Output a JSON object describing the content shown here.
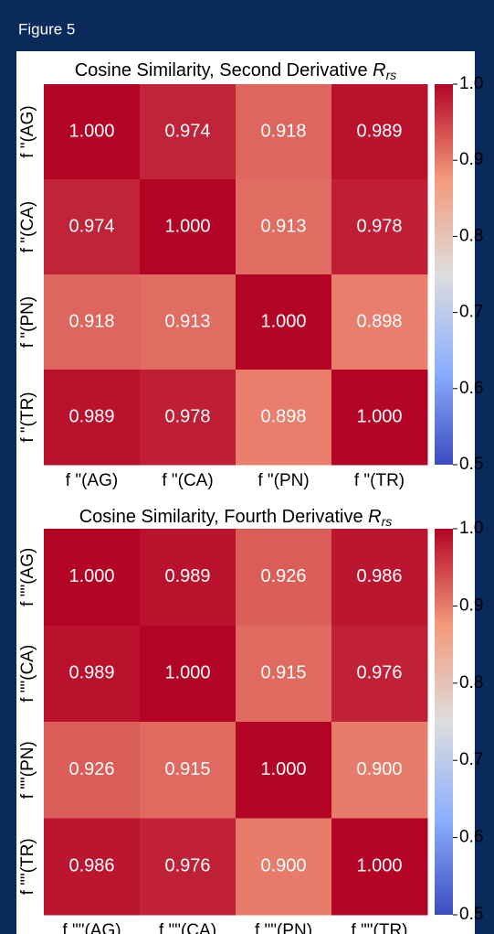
{
  "header": {
    "title": "Figure 5"
  },
  "chart_data": [
    {
      "type": "heatmap",
      "title": "Cosine Similarity, Second Derivative",
      "title_symbol": "R",
      "title_symbol_subscript": "rs",
      "x_categories": [
        "f \"(AG)",
        "f \"(CA)",
        "f \"(PN)",
        "f \"(TR)"
      ],
      "y_categories": [
        "f \"(AG)",
        "f \"(CA)",
        "f \"(PN)",
        "f \"(TR)"
      ],
      "z": [
        [
          1.0,
          0.974,
          0.918,
          0.989
        ],
        [
          0.974,
          1.0,
          0.913,
          0.978
        ],
        [
          0.918,
          0.913,
          1.0,
          0.898
        ],
        [
          0.989,
          0.978,
          0.898,
          1.0
        ]
      ],
      "value_labels": [
        [
          "1.000",
          "0.974",
          "0.918",
          "0.989"
        ],
        [
          "0.974",
          "1.000",
          "0.913",
          "0.978"
        ],
        [
          "0.918",
          "0.913",
          "1.000",
          "0.898"
        ],
        [
          "0.989",
          "0.978",
          "0.898",
          "1.000"
        ]
      ],
      "colormap": "coolwarm",
      "zlim": [
        0.5,
        1.0
      ],
      "zticks": [
        0.5,
        0.6,
        0.7,
        0.8,
        0.9,
        {
          "value": 1.0,
          "label": "1.0"
        }
      ]
    },
    {
      "type": "heatmap",
      "title": "Cosine Similarity, Fourth Derivative",
      "title_symbol": "R",
      "title_symbol_subscript": "rs",
      "x_categories": [
        "f \"\"(AG)",
        "f \"\"(CA)",
        "f \"\"(PN)",
        "f \"\"(TR)"
      ],
      "y_categories": [
        "f \"\"(AG)",
        "f \"\"(CA)",
        "f \"\"(PN)",
        "f \"\"(TR)"
      ],
      "z": [
        [
          1.0,
          0.989,
          0.926,
          0.986
        ],
        [
          0.989,
          1.0,
          0.915,
          0.976
        ],
        [
          0.926,
          0.915,
          1.0,
          0.9
        ],
        [
          0.986,
          0.976,
          0.9,
          1.0
        ]
      ],
      "value_labels": [
        [
          "1.000",
          "0.989",
          "0.926",
          "0.986"
        ],
        [
          "0.989",
          "1.000",
          "0.915",
          "0.976"
        ],
        [
          "0.926",
          "0.915",
          "1.000",
          "0.900"
        ],
        [
          "0.986",
          "0.976",
          "0.900",
          "1.000"
        ]
      ],
      "colormap": "coolwarm",
      "zlim": [
        0.5,
        1.0
      ],
      "zticks": [
        0.5,
        0.6,
        0.7,
        0.8,
        0.9,
        {
          "value": 1.0,
          "label": "1.0"
        }
      ]
    }
  ]
}
